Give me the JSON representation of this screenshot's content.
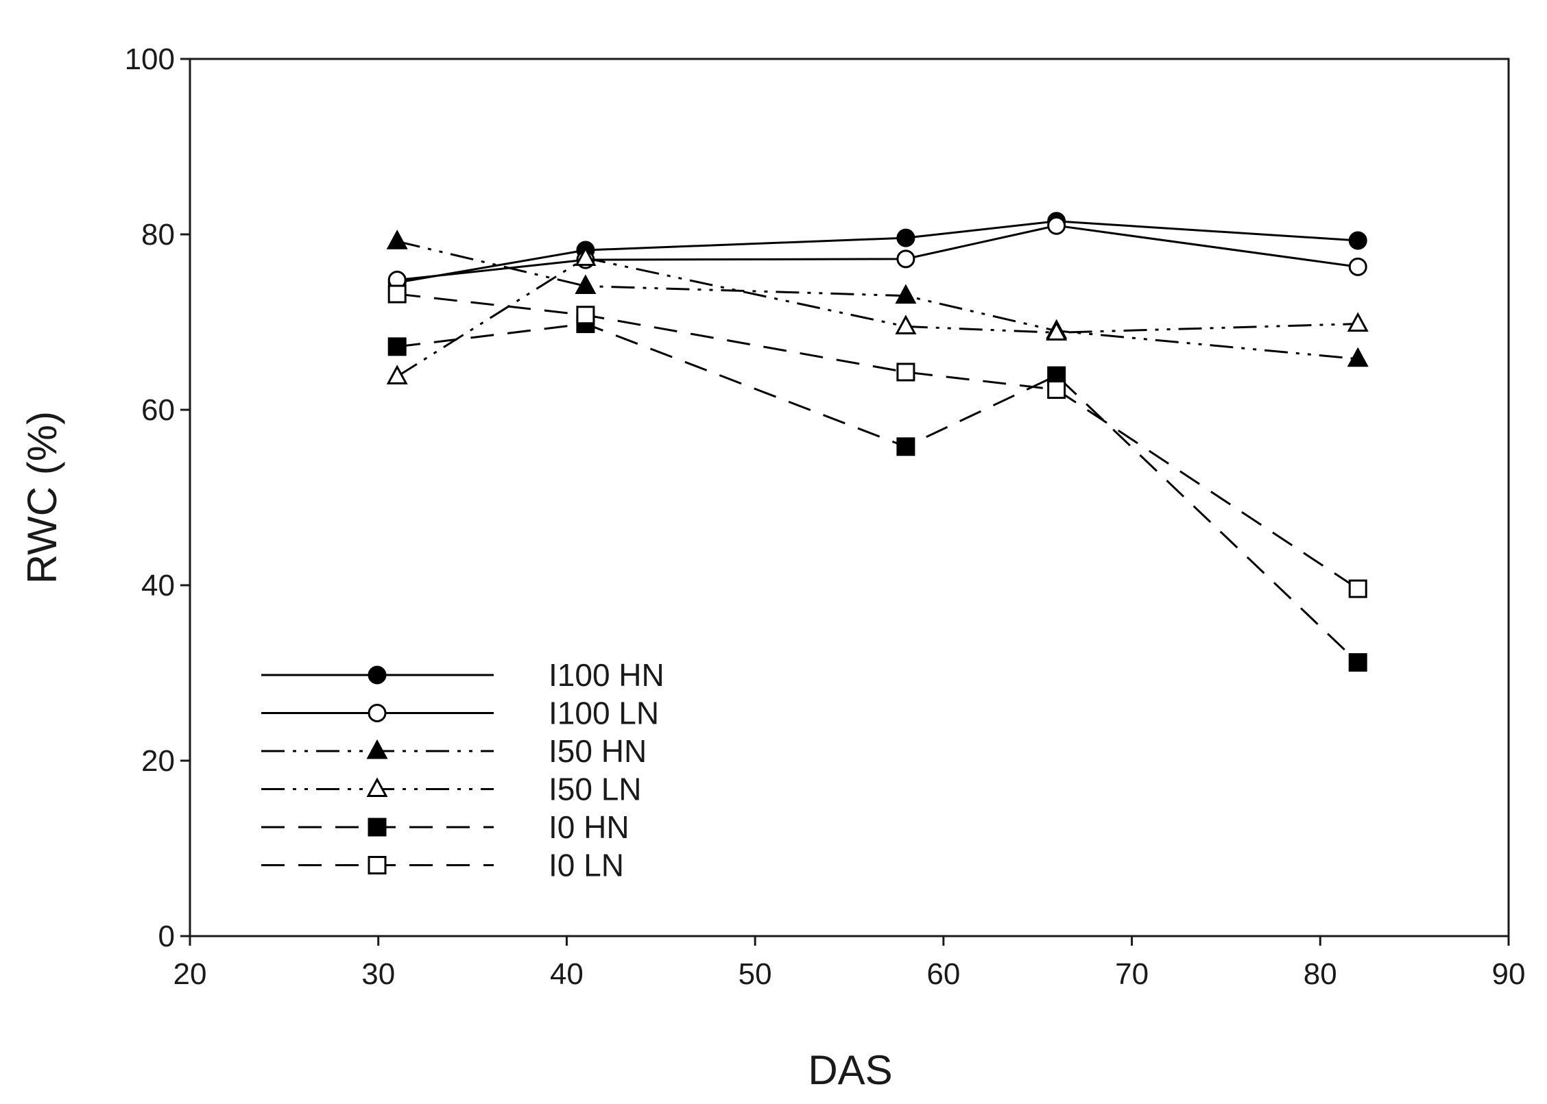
{
  "chart_data": {
    "type": "line",
    "title": "",
    "xlabel": "DAS",
    "ylabel": "RWC (%)",
    "xlim": [
      20,
      90
    ],
    "ylim": [
      0,
      100
    ],
    "xticks": [
      20,
      30,
      40,
      50,
      60,
      70,
      80,
      90
    ],
    "yticks": [
      0,
      20,
      40,
      60,
      80,
      100
    ],
    "grid": false,
    "legend_position": "bottom-left",
    "x": [
      31,
      41,
      58,
      66,
      82
    ],
    "series": [
      {
        "name": "I100 HN",
        "values": [
          74.5,
          78.2,
          79.6,
          81.5,
          79.3
        ],
        "marker": "circle",
        "filled": true,
        "dash": "solid"
      },
      {
        "name": "I100 LN",
        "values": [
          74.8,
          77.1,
          77.2,
          81.0,
          76.3
        ],
        "marker": "circle",
        "filled": false,
        "dash": "solid"
      },
      {
        "name": "I50 HN",
        "values": [
          79.2,
          74.1,
          73.0,
          69.0,
          65.8
        ],
        "marker": "triangle",
        "filled": true,
        "dash": "dash-dot-dot"
      },
      {
        "name": "I50 LN",
        "values": [
          63.8,
          77.3,
          69.5,
          68.8,
          69.8
        ],
        "marker": "triangle",
        "filled": false,
        "dash": "dash-dot-dot"
      },
      {
        "name": "I0 HN",
        "values": [
          67.2,
          69.8,
          55.8,
          63.9,
          31.2
        ],
        "marker": "square",
        "filled": true,
        "dash": "dash"
      },
      {
        "name": "I0 LN",
        "values": [
          73.2,
          70.8,
          64.3,
          62.3,
          39.6
        ],
        "marker": "square",
        "filled": false,
        "dash": "dash"
      }
    ]
  }
}
